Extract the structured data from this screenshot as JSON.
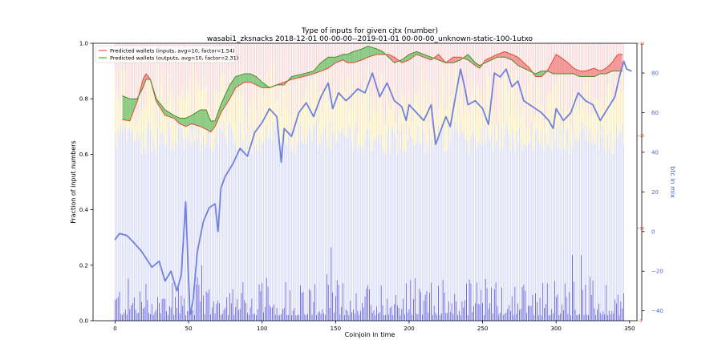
{
  "chart_data": {
    "type": "bar",
    "title": "Type of inputs for given cjtx (number)",
    "subtitle": "wasabi1_zksnacks 2018-12-01 00-00-00--2019-01-01 00-00-00_unknown-static-100-1utxo",
    "xlabel": "Coinjoin in time",
    "ylabel": "Fraction of input numbers",
    "ylabel_right": "btc in mix",
    "xlim": [
      -15,
      355
    ],
    "ylim": [
      0,
      1.0
    ],
    "y2lim": [
      -45,
      95
    ],
    "y3lim": [
      0,
      30
    ],
    "grid": false,
    "legend_position": "top-left",
    "x_ticks": [
      0,
      50,
      100,
      150,
      200,
      250,
      300,
      350
    ],
    "y_ticks": [
      0.0,
      0.2,
      0.4,
      0.6,
      0.8,
      1.0
    ],
    "y2_ticks": [
      -40,
      -20,
      0,
      20,
      40,
      60,
      80
    ],
    "y3_ticks": [
      0,
      10,
      20,
      30
    ],
    "x_tick_labels": [
      "0",
      "50",
      "100",
      "150",
      "200",
      "250",
      "300",
      "350"
    ],
    "y_tick_labels": [
      "0.0",
      "0.2",
      "0.4",
      "0.6",
      "0.8",
      "1.0"
    ],
    "y2_tick_labels": [
      "−40",
      "−20",
      "0",
      "20",
      "40",
      "60",
      "80"
    ],
    "y3_tick_labels": [
      "0",
      "10",
      "20",
      "30"
    ],
    "n_bars": 347,
    "legend": [
      {
        "label": "Predicted wallets (inputs, avg=10, factor=1.54)",
        "color": "#ff6b6b"
      },
      {
        "label": "Predicted wallets (outputs, avg=10, factor=2.31)",
        "color": "#5cb85c"
      }
    ],
    "colors": {
      "inputs_line": "#e24a33",
      "outputs_line": "#4a8a2a",
      "fill_red": "#f08080",
      "fill_green": "#6abf69",
      "btc_line": "#6f82dc",
      "bar_blue": "#2b2bd6",
      "bar_light_blue": "#c9cdf5",
      "bar_yellow": "#f7e08a",
      "bar_pink": "#f6c3c3"
    },
    "btc_in_mix_keypoints": [
      [
        0,
        -4
      ],
      [
        3,
        -1
      ],
      [
        8,
        -2
      ],
      [
        12,
        -5
      ],
      [
        18,
        -10
      ],
      [
        25,
        -18
      ],
      [
        30,
        -15
      ],
      [
        34,
        -25
      ],
      [
        38,
        -20
      ],
      [
        42,
        -30
      ],
      [
        45,
        -22
      ],
      [
        48,
        15
      ],
      [
        50,
        -25
      ],
      [
        51,
        -42
      ],
      [
        53,
        -35
      ],
      [
        56,
        -10
      ],
      [
        60,
        5
      ],
      [
        64,
        12
      ],
      [
        68,
        14
      ],
      [
        70,
        0
      ],
      [
        72,
        22
      ],
      [
        75,
        28
      ],
      [
        80,
        34
      ],
      [
        85,
        42
      ],
      [
        90,
        38
      ],
      [
        95,
        50
      ],
      [
        100,
        55
      ],
      [
        105,
        62
      ],
      [
        110,
        58
      ],
      [
        113,
        35
      ],
      [
        115,
        52
      ],
      [
        120,
        48
      ],
      [
        125,
        60
      ],
      [
        130,
        65
      ],
      [
        135,
        58
      ],
      [
        140,
        68
      ],
      [
        145,
        75
      ],
      [
        148,
        62
      ],
      [
        152,
        70
      ],
      [
        157,
        66
      ],
      [
        160,
        68
      ],
      [
        165,
        72
      ],
      [
        170,
        70
      ],
      [
        175,
        80
      ],
      [
        180,
        68
      ],
      [
        185,
        75
      ],
      [
        190,
        66
      ],
      [
        195,
        63
      ],
      [
        198,
        56
      ],
      [
        200,
        64
      ],
      [
        205,
        60
      ],
      [
        210,
        56
      ],
      [
        215,
        64
      ],
      [
        218,
        44
      ],
      [
        222,
        52
      ],
      [
        225,
        58
      ],
      [
        228,
        53
      ],
      [
        232,
        70
      ],
      [
        235,
        82
      ],
      [
        238,
        72
      ],
      [
        240,
        64
      ],
      [
        245,
        66
      ],
      [
        250,
        62
      ],
      [
        254,
        54
      ],
      [
        258,
        80
      ],
      [
        262,
        78
      ],
      [
        266,
        82
      ],
      [
        270,
        73
      ],
      [
        274,
        76
      ],
      [
        278,
        66
      ],
      [
        282,
        64
      ],
      [
        286,
        62
      ],
      [
        290,
        60
      ],
      [
        295,
        56
      ],
      [
        298,
        52
      ],
      [
        300,
        62
      ],
      [
        305,
        56
      ],
      [
        310,
        60
      ],
      [
        315,
        70
      ],
      [
        320,
        66
      ],
      [
        325,
        64
      ],
      [
        330,
        56
      ],
      [
        335,
        62
      ],
      [
        340,
        68
      ],
      [
        343,
        78
      ],
      [
        346,
        86
      ],
      [
        348,
        82
      ],
      [
        351,
        81
      ]
    ],
    "inputs_prediction_keypoints": [
      [
        5,
        0.725
      ],
      [
        10,
        0.72
      ],
      [
        15,
        0.79
      ],
      [
        19,
        0.87
      ],
      [
        21,
        0.89
      ],
      [
        24,
        0.87
      ],
      [
        28,
        0.79
      ],
      [
        34,
        0.74
      ],
      [
        40,
        0.73
      ],
      [
        44,
        0.71
      ],
      [
        48,
        0.7
      ],
      [
        52,
        0.71
      ],
      [
        58,
        0.7
      ],
      [
        62,
        0.69
      ],
      [
        65,
        0.68
      ],
      [
        68,
        0.7
      ],
      [
        72,
        0.75
      ],
      [
        78,
        0.8
      ],
      [
        82,
        0.84
      ],
      [
        88,
        0.86
      ],
      [
        92,
        0.86
      ],
      [
        96,
        0.85
      ],
      [
        100,
        0.84
      ],
      [
        105,
        0.84
      ],
      [
        110,
        0.85
      ],
      [
        115,
        0.86
      ],
      [
        120,
        0.87
      ],
      [
        128,
        0.88
      ],
      [
        135,
        0.89
      ],
      [
        140,
        0.9
      ],
      [
        145,
        0.91
      ],
      [
        150,
        0.93
      ],
      [
        155,
        0.94
      ],
      [
        158,
        0.93
      ],
      [
        162,
        0.93
      ],
      [
        168,
        0.94
      ],
      [
        172,
        0.95
      ],
      [
        178,
        0.96
      ],
      [
        182,
        0.96
      ],
      [
        186,
        0.96
      ],
      [
        190,
        0.95
      ],
      [
        195,
        0.93
      ],
      [
        200,
        0.94
      ],
      [
        205,
        0.96
      ],
      [
        210,
        0.95
      ],
      [
        215,
        0.94
      ],
      [
        220,
        0.96
      ],
      [
        225,
        0.93
      ],
      [
        230,
        0.95
      ],
      [
        235,
        0.95
      ],
      [
        240,
        0.94
      ],
      [
        245,
        0.92
      ],
      [
        248,
        0.91
      ],
      [
        252,
        0.94
      ],
      [
        256,
        0.95
      ],
      [
        260,
        0.96
      ],
      [
        265,
        0.97
      ],
      [
        270,
        0.96
      ],
      [
        274,
        0.95
      ],
      [
        278,
        0.93
      ],
      [
        282,
        0.91
      ],
      [
        286,
        0.88
      ],
      [
        290,
        0.88
      ],
      [
        294,
        0.9
      ],
      [
        298,
        0.94
      ],
      [
        300,
        0.96
      ],
      [
        303,
        0.95
      ],
      [
        308,
        0.93
      ],
      [
        312,
        0.91
      ],
      [
        316,
        0.9
      ],
      [
        320,
        0.9
      ],
      [
        326,
        0.91
      ],
      [
        330,
        0.9
      ],
      [
        334,
        0.91
      ],
      [
        338,
        0.93
      ],
      [
        342,
        0.96
      ],
      [
        345,
        0.96
      ]
    ],
    "outputs_prediction_keypoints": [
      [
        5,
        0.81
      ],
      [
        10,
        0.8
      ],
      [
        15,
        0.8
      ],
      [
        19,
        0.84
      ],
      [
        21,
        0.87
      ],
      [
        24,
        0.87
      ],
      [
        28,
        0.8
      ],
      [
        34,
        0.76
      ],
      [
        40,
        0.74
      ],
      [
        44,
        0.73
      ],
      [
        48,
        0.73
      ],
      [
        52,
        0.74
      ],
      [
        58,
        0.76
      ],
      [
        62,
        0.76
      ],
      [
        65,
        0.72
      ],
      [
        68,
        0.72
      ],
      [
        72,
        0.78
      ],
      [
        78,
        0.85
      ],
      [
        82,
        0.88
      ],
      [
        88,
        0.89
      ],
      [
        92,
        0.89
      ],
      [
        96,
        0.88
      ],
      [
        100,
        0.86
      ],
      [
        105,
        0.84
      ],
      [
        110,
        0.85
      ],
      [
        115,
        0.85
      ],
      [
        120,
        0.88
      ],
      [
        128,
        0.89
      ],
      [
        135,
        0.9
      ],
      [
        140,
        0.93
      ],
      [
        145,
        0.95
      ],
      [
        150,
        0.95
      ],
      [
        155,
        0.96
      ],
      [
        158,
        0.96
      ],
      [
        162,
        0.97
      ],
      [
        168,
        0.98
      ],
      [
        172,
        0.99
      ],
      [
        178,
        0.98
      ],
      [
        182,
        0.97
      ],
      [
        186,
        0.95
      ],
      [
        190,
        0.93
      ],
      [
        195,
        0.94
      ],
      [
        200,
        0.96
      ],
      [
        205,
        0.97
      ],
      [
        210,
        0.96
      ],
      [
        215,
        0.95
      ],
      [
        220,
        0.94
      ],
      [
        225,
        0.93
      ],
      [
        230,
        0.93
      ],
      [
        235,
        0.94
      ],
      [
        240,
        0.96
      ],
      [
        245,
        0.93
      ],
      [
        248,
        0.92
      ],
      [
        252,
        0.93
      ],
      [
        256,
        0.94
      ],
      [
        260,
        0.95
      ],
      [
        265,
        0.95
      ],
      [
        270,
        0.94
      ],
      [
        274,
        0.92
      ],
      [
        278,
        0.91
      ],
      [
        282,
        0.9
      ],
      [
        286,
        0.89
      ],
      [
        290,
        0.9
      ],
      [
        294,
        0.9
      ],
      [
        298,
        0.89
      ],
      [
        300,
        0.89
      ],
      [
        303,
        0.89
      ],
      [
        308,
        0.89
      ],
      [
        312,
        0.89
      ],
      [
        316,
        0.88
      ],
      [
        320,
        0.88
      ],
      [
        326,
        0.88
      ],
      [
        330,
        0.89
      ],
      [
        334,
        0.89
      ],
      [
        338,
        0.9
      ],
      [
        342,
        0.9
      ],
      [
        345,
        0.9
      ]
    ]
  }
}
